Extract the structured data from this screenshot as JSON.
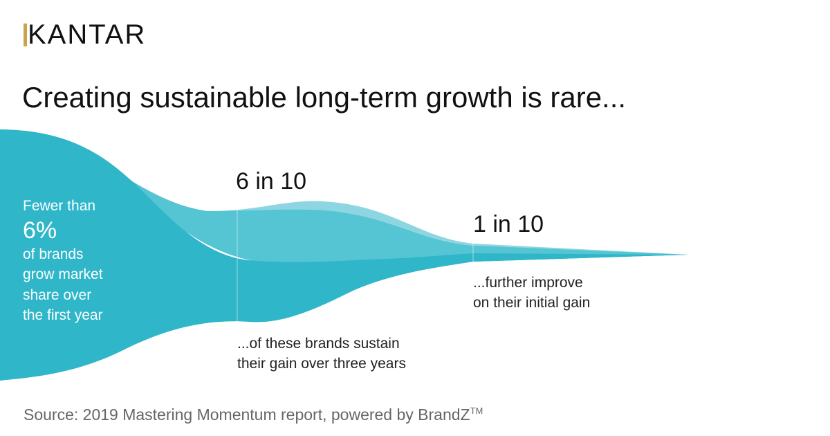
{
  "logo": {
    "text": "KANTAR",
    "accent_color": "#c9a24a"
  },
  "headline": "Creating sustainable long-term growth is rare...",
  "stages": [
    {
      "lines": [
        "Fewer than"
      ],
      "value": "6%",
      "lines_after": [
        "of brands",
        "grow market",
        "share over",
        "the first year"
      ]
    },
    {
      "stat": "6 in 10",
      "lines": [
        "...of these brands sustain",
        "their gain over three years"
      ]
    },
    {
      "stat": "1 in 10",
      "lines": [
        "...further improve",
        "on their initial gain"
      ]
    }
  ],
  "source": {
    "text": "Source: 2019 Mastering Momentum report, powered by BrandZ",
    "trademark": "TM"
  },
  "colors": {
    "main_stream": "#2fb6c9",
    "mid_stream": "#55c4d3",
    "light_stream": "#8dd6e1",
    "logo_accent": "#c9a24a"
  }
}
